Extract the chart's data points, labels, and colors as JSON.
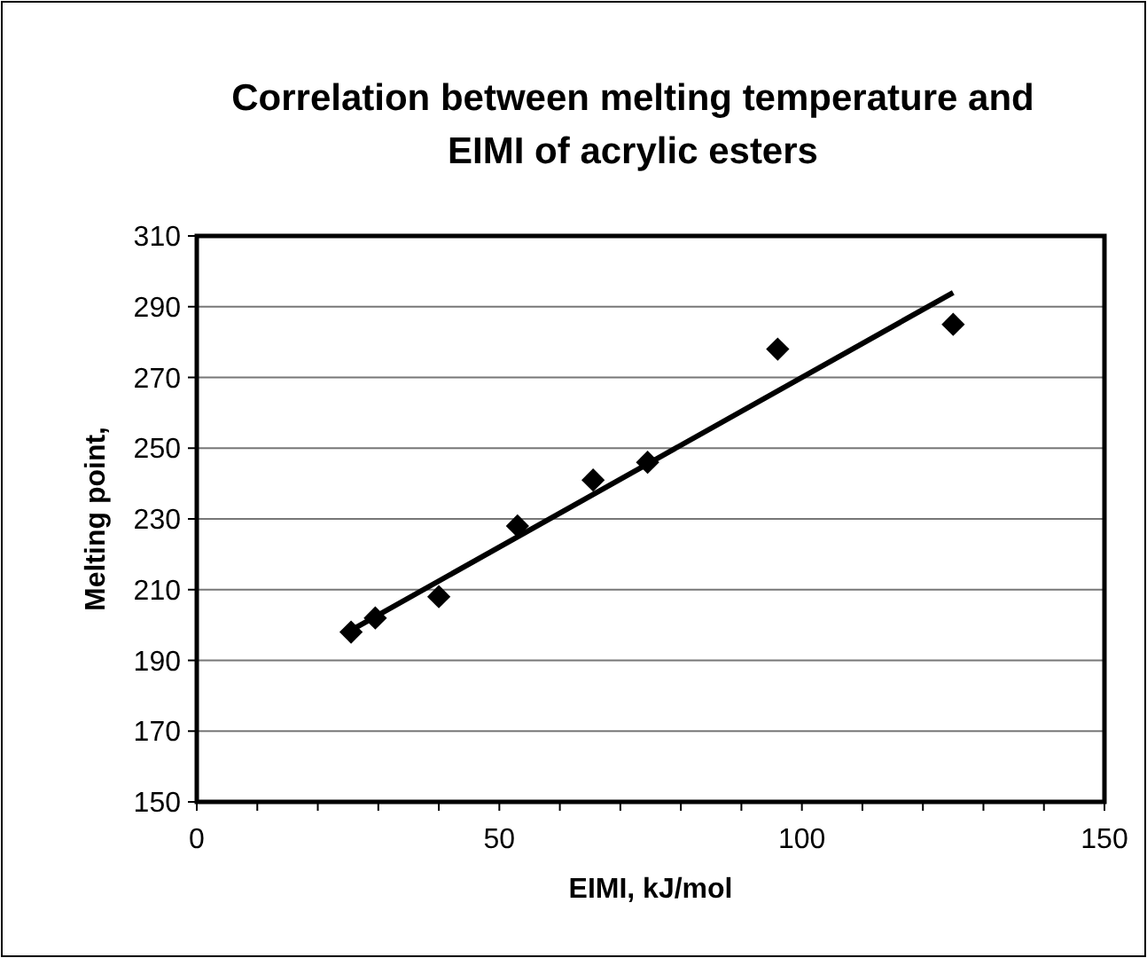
{
  "chart_data": {
    "type": "scatter",
    "title": "Correlation between melting temperature and EIMI of acrylic esters",
    "xlabel": "EIMI, kJ/mol",
    "ylabel": "Melting point,",
    "xlim": [
      0,
      150
    ],
    "ylim": [
      150,
      310
    ],
    "xticks": [
      0,
      {
        "value": 10,
        "label": null
      },
      {
        "value": 20,
        "label": null
      },
      {
        "value": 30,
        "label": null
      },
      {
        "value": 40,
        "label": null
      },
      50,
      {
        "value": 60,
        "label": null
      },
      {
        "value": 70,
        "label": null
      },
      {
        "value": 80,
        "label": null
      },
      {
        "value": 90,
        "label": null
      },
      100,
      {
        "value": 110,
        "label": null
      },
      {
        "value": 120,
        "label": null
      },
      {
        "value": 130,
        "label": null
      },
      {
        "value": 140,
        "label": null
      },
      150
    ],
    "yticks": [
      150,
      170,
      190,
      210,
      230,
      250,
      270,
      290,
      310
    ],
    "grid": "y",
    "marker": "diamond",
    "series": [
      {
        "color": "#000000",
        "x": [
          25.5,
          29.5,
          40,
          53,
          65.5,
          74.5,
          96,
          125
        ],
        "values": [
          198,
          202,
          208,
          228,
          241,
          246,
          278,
          285
        ]
      },
      {
        "type": "line",
        "color": "#000000",
        "x": [
          26,
          125
        ],
        "values": [
          199,
          294
        ],
        "marker": "none"
      }
    ]
  }
}
